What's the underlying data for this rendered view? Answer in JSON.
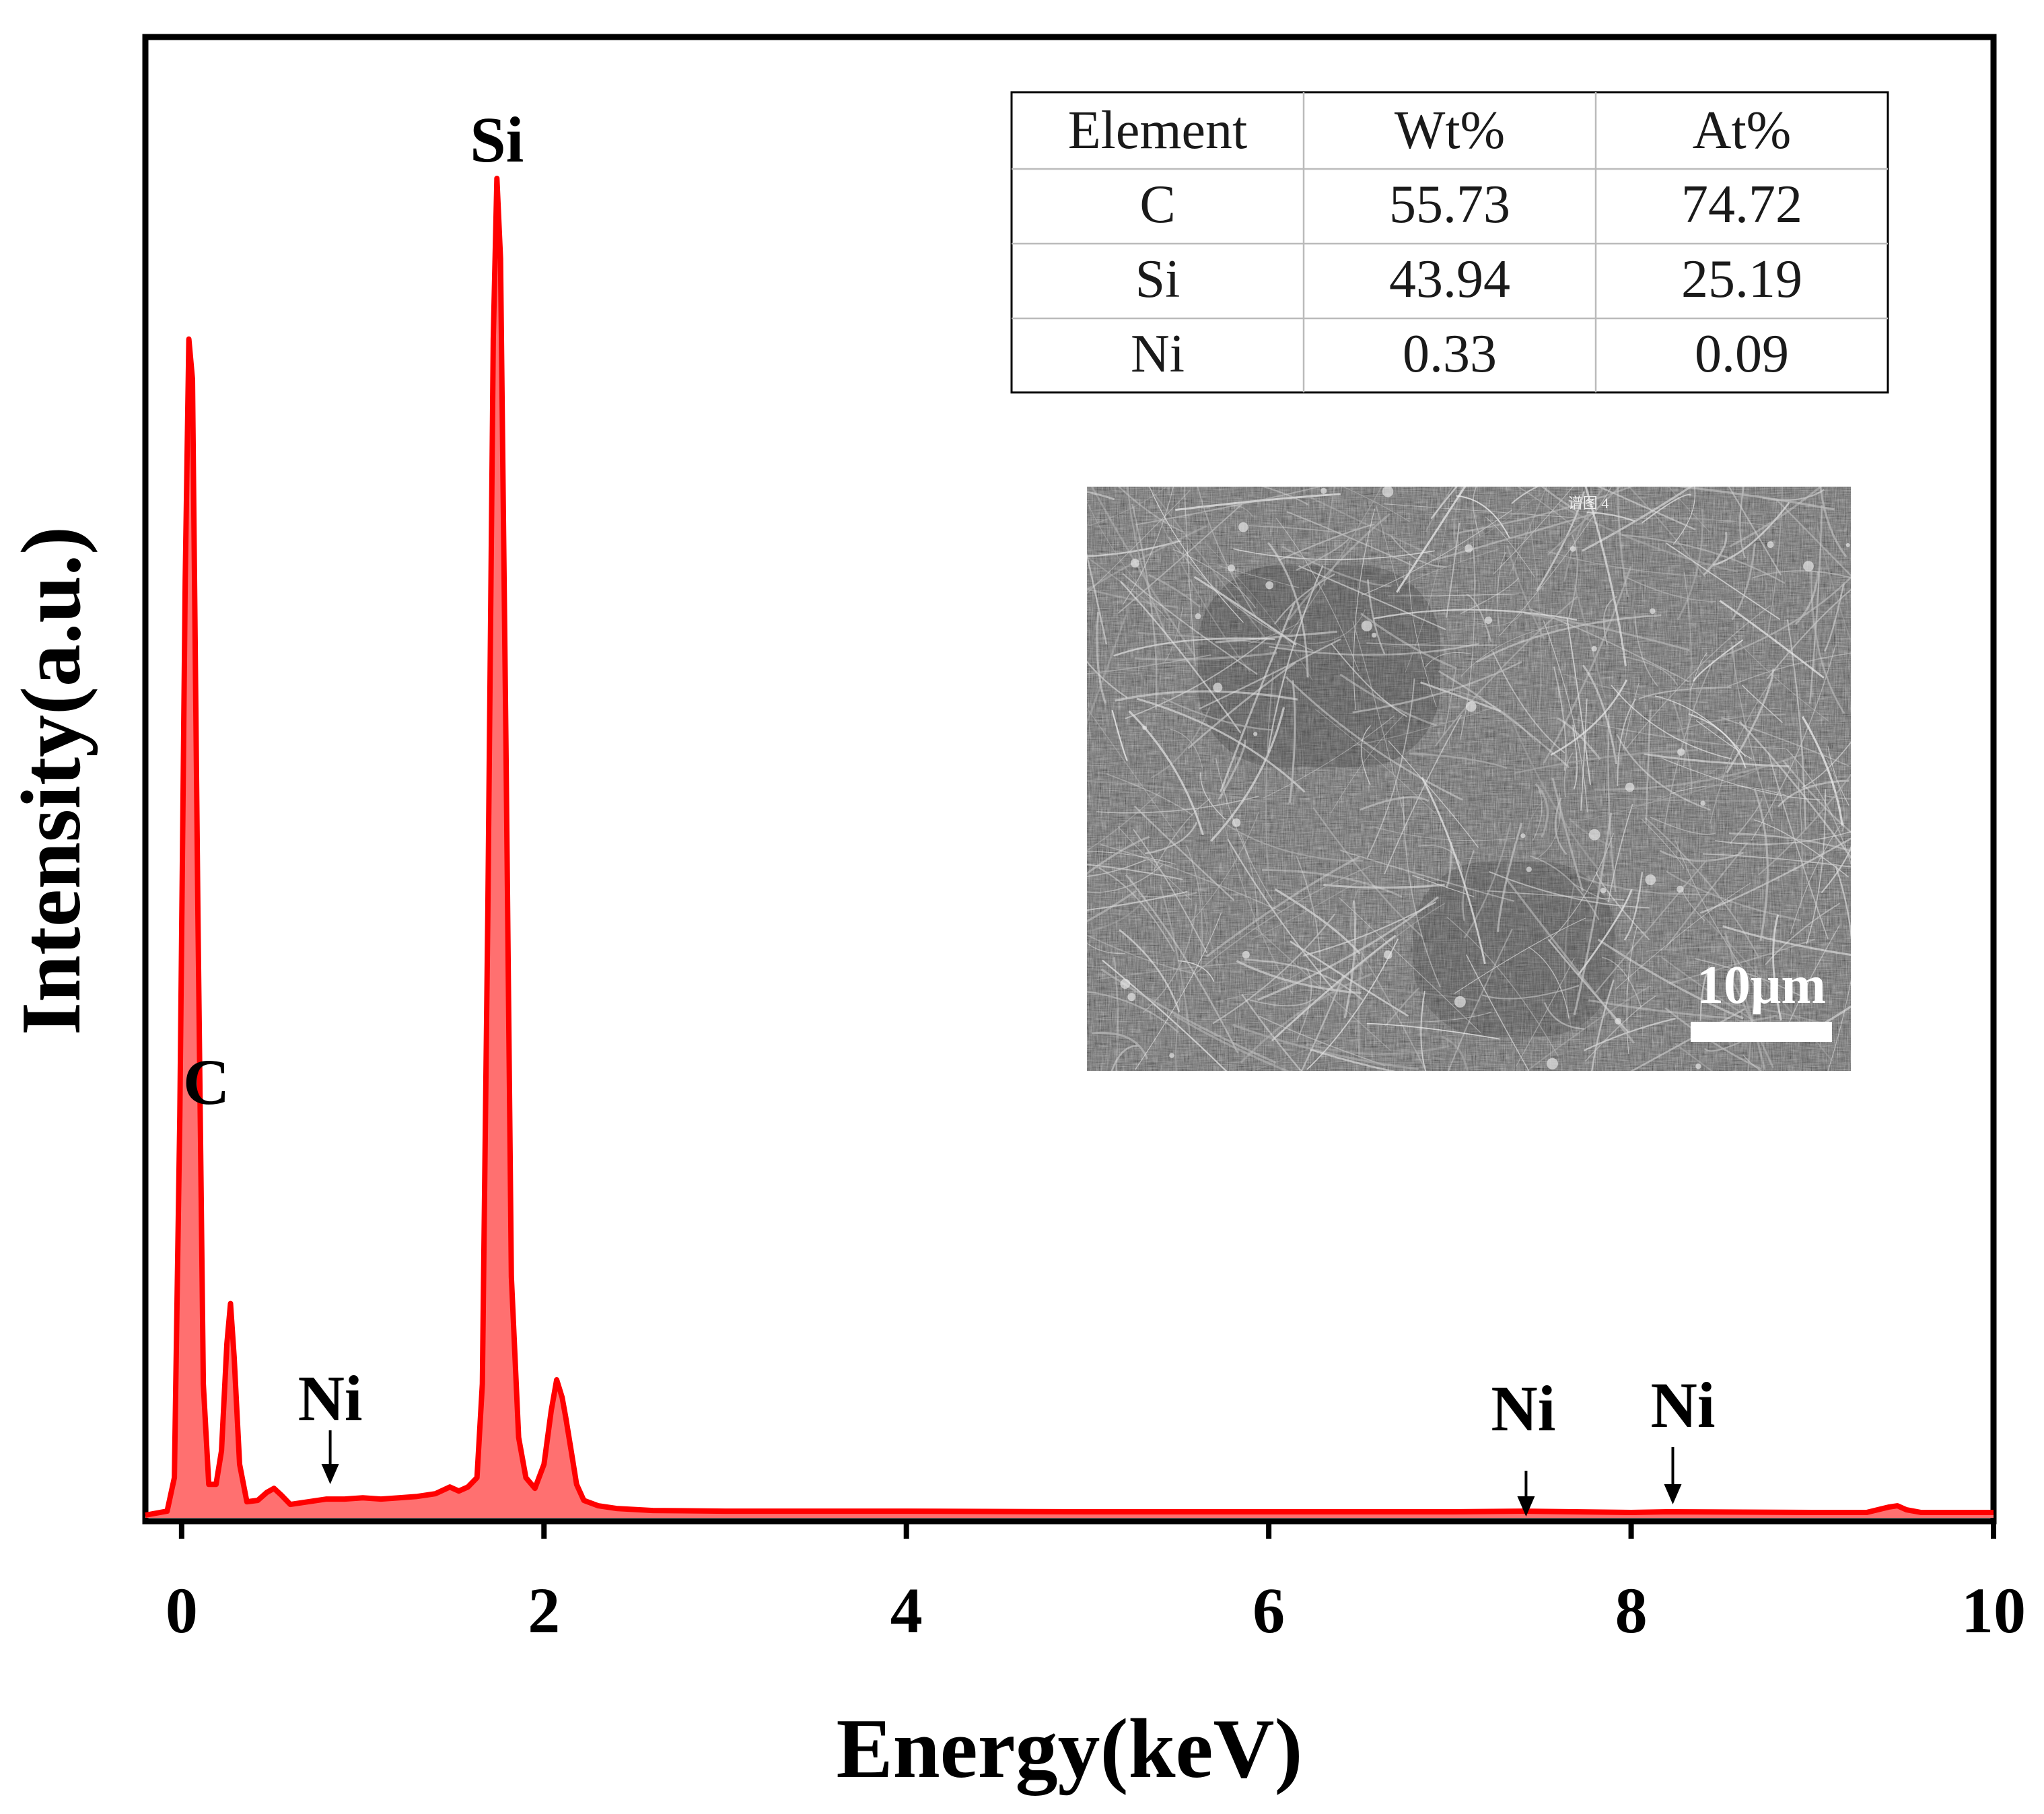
{
  "chart_data": {
    "type": "line",
    "title": "",
    "xlabel": "Energy(keV)",
    "ylabel": "Intensity(a.u.)",
    "xlim": [
      -0.2,
      10
    ],
    "ylim": [
      0,
      100
    ],
    "x_ticks": [
      "0",
      "2",
      "4",
      "6",
      "8",
      "10"
    ],
    "grid": false,
    "series": [
      {
        "name": "EDS spectrum",
        "color": "#ff0000",
        "fill_color": "#ff7070",
        "points": [
          [
            -0.2,
            0.2
          ],
          [
            -0.08,
            0.5
          ],
          [
            -0.04,
            3
          ],
          [
            -0.01,
            30
          ],
          [
            0.02,
            70
          ],
          [
            0.04,
            88
          ],
          [
            0.06,
            85
          ],
          [
            0.09,
            45
          ],
          [
            0.12,
            10
          ],
          [
            0.15,
            2.5
          ],
          [
            0.19,
            2.5
          ],
          [
            0.22,
            5
          ],
          [
            0.25,
            13
          ],
          [
            0.27,
            16
          ],
          [
            0.29,
            12
          ],
          [
            0.32,
            4
          ],
          [
            0.36,
            1.2
          ],
          [
            0.42,
            1.3
          ],
          [
            0.47,
            1.9
          ],
          [
            0.51,
            2.2
          ],
          [
            0.55,
            1.7
          ],
          [
            0.6,
            1
          ],
          [
            0.7,
            1.2
          ],
          [
            0.8,
            1.4
          ],
          [
            0.9,
            1.4
          ],
          [
            1.0,
            1.5
          ],
          [
            1.1,
            1.4
          ],
          [
            1.2,
            1.5
          ],
          [
            1.3,
            1.6
          ],
          [
            1.4,
            1.8
          ],
          [
            1.48,
            2.3
          ],
          [
            1.53,
            2.0
          ],
          [
            1.58,
            2.3
          ],
          [
            1.63,
            3
          ],
          [
            1.66,
            10
          ],
          [
            1.69,
            45
          ],
          [
            1.72,
            88
          ],
          [
            1.74,
            100
          ],
          [
            1.76,
            94
          ],
          [
            1.79,
            58
          ],
          [
            1.82,
            18
          ],
          [
            1.86,
            6
          ],
          [
            1.9,
            3
          ],
          [
            1.95,
            2.2
          ],
          [
            2.0,
            4
          ],
          [
            2.04,
            8
          ],
          [
            2.07,
            10.3
          ],
          [
            2.1,
            9
          ],
          [
            2.12,
            7.5
          ],
          [
            2.15,
            5
          ],
          [
            2.18,
            2.5
          ],
          [
            2.22,
            1.3
          ],
          [
            2.3,
            0.9
          ],
          [
            2.4,
            0.7
          ],
          [
            2.6,
            0.55
          ],
          [
            3.0,
            0.5
          ],
          [
            4.0,
            0.5
          ],
          [
            5.0,
            0.45
          ],
          [
            6.0,
            0.45
          ],
          [
            7.0,
            0.45
          ],
          [
            7.4,
            0.5
          ],
          [
            8.0,
            0.4
          ],
          [
            8.2,
            0.45
          ],
          [
            9.0,
            0.4
          ],
          [
            9.3,
            0.4
          ],
          [
            9.42,
            0.8
          ],
          [
            9.47,
            0.9
          ],
          [
            9.52,
            0.6
          ],
          [
            9.6,
            0.4
          ],
          [
            10.0,
            0.4
          ]
        ]
      }
    ],
    "annotations": [
      {
        "text": "Si",
        "x": 1.74,
        "arrow": false
      },
      {
        "text": "C",
        "x": 0.04,
        "arrow": false
      },
      {
        "text": "Ni",
        "x": 0.82,
        "arrow": true
      },
      {
        "text": "Ni",
        "x": 7.42,
        "arrow": true
      },
      {
        "text": "Ni",
        "x": 8.23,
        "arrow": true
      }
    ]
  },
  "composition_table": {
    "headers": [
      "Element",
      "Wt%",
      "At%"
    ],
    "rows": [
      [
        "C",
        "55.73",
        "74.72"
      ],
      [
        "Si",
        "43.94",
        "25.19"
      ],
      [
        "Ni",
        "0.33",
        "0.09"
      ]
    ]
  },
  "inset_image": {
    "description_label": "SEM micrograph",
    "scale_bar_label": "10μm",
    "header_mark": "谱图 4"
  }
}
